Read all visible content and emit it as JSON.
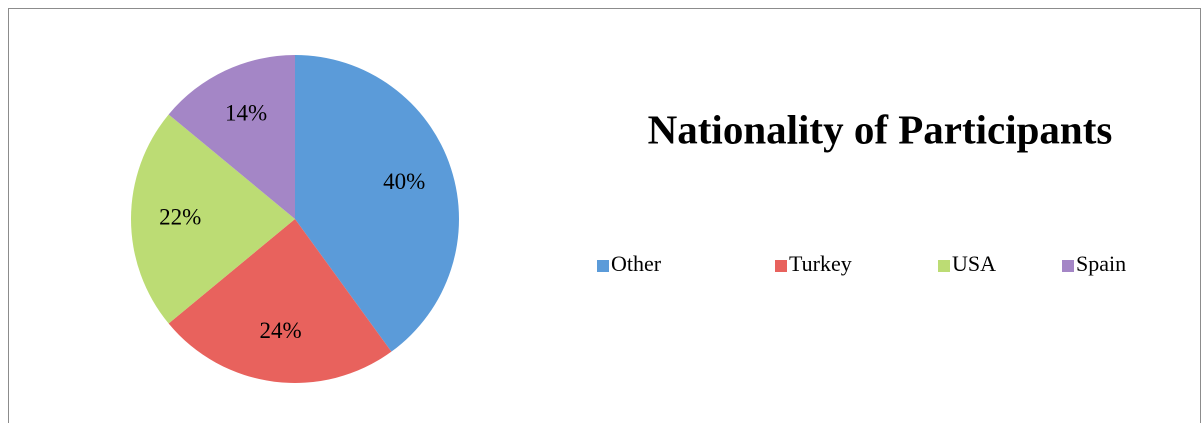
{
  "chart_data": {
    "type": "pie",
    "title": "Nationality of Participants",
    "categories": [
      "Other",
      "Turkey",
      "USA",
      "Spain"
    ],
    "values": [
      40,
      24,
      22,
      14
    ],
    "value_labels": [
      "40%",
      "24%",
      "22%",
      "14%"
    ],
    "colors": [
      "#5b9bd9",
      "#e8625d",
      "#bcdc74",
      "#a486c6"
    ],
    "legend": "right"
  }
}
